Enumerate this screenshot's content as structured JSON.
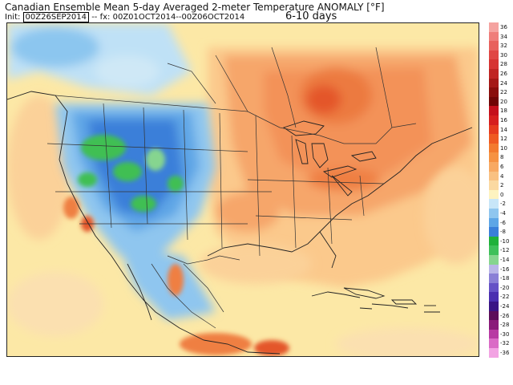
{
  "header": {
    "title": "Canadian Ensemble Mean 5-day Averaged 2-meter Temperature ANOMALY [°F]",
    "init_label": "Init:",
    "init_value": "00Z26SEP2014",
    "separator": "--",
    "valid_label": "fx:",
    "valid_value": "00Z01OCT2014--00Z06OCT2014",
    "window": "6-10 days"
  },
  "colorbar": {
    "unit": "°F",
    "levels": [
      36,
      34,
      32,
      30,
      28,
      26,
      24,
      22,
      20,
      18,
      16,
      14,
      12,
      10,
      8,
      6,
      4,
      2,
      0,
      -2,
      -4,
      -6,
      -8,
      -10,
      -12,
      -14,
      -16,
      -18,
      -20,
      -22,
      -24,
      -26,
      -28,
      -30,
      -32,
      -36
    ],
    "colors": [
      "#f5a3a0",
      "#ef7d7a",
      "#e8615d",
      "#e04744",
      "#d63432",
      "#c02523",
      "#a51816",
      "#8a0d0b",
      "#700505",
      "#c5101c",
      "#d61f1f",
      "#e63b1f",
      "#ef5a22",
      "#f37a2e",
      "#f69242",
      "#f8a962",
      "#f9c182",
      "#fbd9a1",
      "#fdf3c0",
      "#c8e6f8",
      "#8fc6ef",
      "#5ea6e6",
      "#3a7fd9",
      "#1fb13a",
      "#3ec05a",
      "#86d58f",
      "#b9b5e8",
      "#8a7fd6",
      "#6552c6",
      "#4a2fb0",
      "#3a1585",
      "#5c0e5a",
      "#8a1a7a",
      "#b83aa3",
      "#da6bc6",
      "#f2a3e3"
    ]
  },
  "map": {
    "region": "North America",
    "colors": {
      "ocean_neutral": "#fce8a6",
      "warm_light": "#fbd199",
      "warm": "#f6a66a",
      "warm_strong": "#ef7f42",
      "warm_max": "#e4572a",
      "cool_light": "#bfe1f6",
      "cool": "#6fb2ea",
      "cool_strong": "#2f7bd6",
      "cold_green": "#3fbf52"
    }
  }
}
